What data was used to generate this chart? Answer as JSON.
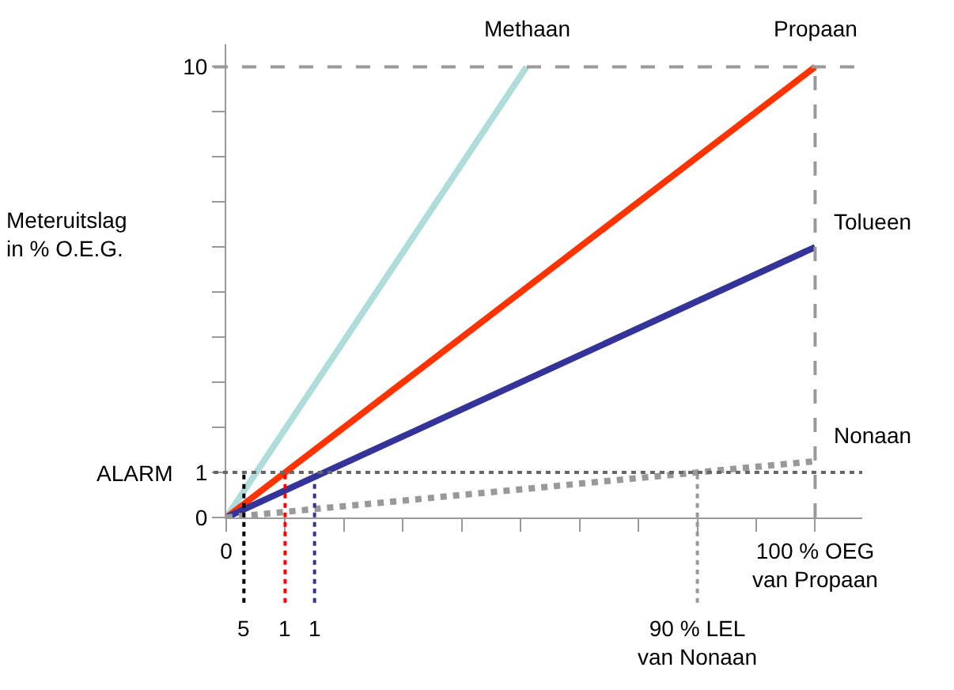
{
  "chart_data": {
    "type": "line",
    "ylabel": "Meteruitslag\nin % O.E.G.",
    "series": [
      {
        "name": "Methaan",
        "color": "#b0dcdc",
        "x": [
          0,
          51
        ],
        "values": [
          0,
          10
        ]
      },
      {
        "name": "Propaan",
        "color": "#ff3300",
        "x": [
          0,
          100
        ],
        "values": [
          0,
          10
        ]
      },
      {
        "name": "Tolueen",
        "color": "#333399",
        "x": [
          0,
          100
        ],
        "values": [
          0,
          6
        ]
      },
      {
        "name": "Nonaan",
        "color": "#999999",
        "x": [
          0,
          100
        ],
        "values": [
          0,
          1.25
        ],
        "line_style": "dotted"
      }
    ],
    "xlim": [
      0,
      108
    ],
    "ylim": [
      0,
      10.5
    ],
    "xticks": [
      0,
      {
        "value": 10,
        "label": null
      },
      {
        "value": 20,
        "label": null
      },
      {
        "value": 30,
        "label": null
      },
      {
        "value": 40,
        "label": null
      },
      {
        "value": 50,
        "label": null
      },
      {
        "value": 60,
        "label": null
      },
      {
        "value": 70,
        "label": null
      },
      {
        "value": 80,
        "label": null
      },
      {
        "value": 90,
        "label": null
      },
      {
        "value": 100,
        "label": "100 % OEG\nvan Propaan"
      }
    ],
    "yticks": [
      0,
      1,
      {
        "value": 2,
        "label": null
      },
      {
        "value": 3,
        "label": null
      },
      {
        "value": 4,
        "label": null
      },
      {
        "value": 5,
        "label": null
      },
      {
        "value": 6,
        "label": null
      },
      {
        "value": 7,
        "label": null
      },
      {
        "value": 8,
        "label": null
      },
      {
        "value": 9,
        "label": null
      },
      10
    ],
    "ref_lines": [
      {
        "axis": "y",
        "value": 1,
        "label": "ALARM",
        "color": "#666666",
        "line_style": "dotted"
      },
      {
        "axis": "y",
        "value": 10,
        "label": null,
        "color": "#999999",
        "line_style": "dashed"
      },
      {
        "axis": "x",
        "value": 100,
        "label": null,
        "color": "#999999",
        "line_style": "dashed"
      },
      {
        "axis": "x",
        "value": 3,
        "color": "#000000",
        "line_style": "dotted"
      },
      {
        "axis": "x",
        "value": 10,
        "color": "#ff0000",
        "line_style": "dotted"
      },
      {
        "axis": "x",
        "value": 15,
        "color": "#333399",
        "line_style": "dotted"
      },
      {
        "axis": "x",
        "value": 80,
        "color": "#999999",
        "line_style": "dotted"
      }
    ],
    "annotations": [
      "5",
      "1",
      "1",
      "90 % LEL\nvan Nonaan"
    ],
    "grid": false,
    "legend": false,
    "marker": "none",
    "line_style": "solid"
  }
}
